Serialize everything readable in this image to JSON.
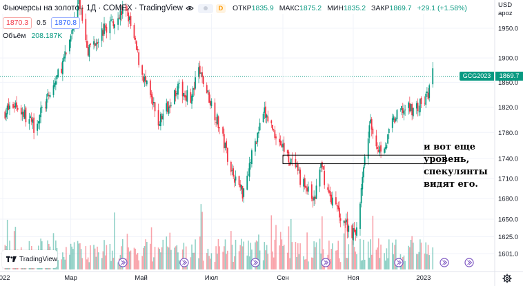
{
  "header": {
    "title": "Фьючерсы на золото · 1Д · COMEX · TradingView",
    "badge_letter": "D",
    "ohlc": [
      {
        "label": "ОТКР",
        "value": "1835.9"
      },
      {
        "label": "МАКС",
        "value": "1875.2"
      },
      {
        "label": "МИН",
        "value": "1835.2"
      },
      {
        "label": "ЗАКР",
        "value": "1869.7"
      }
    ],
    "change": "+29.1 (+1.58%)"
  },
  "quote": {
    "sell": "1870.3",
    "spread": "0.5",
    "buy": "1870.8"
  },
  "volume_legend": {
    "label": "Объём",
    "value": "208.187K"
  },
  "axis_header": {
    "currency": "USD",
    "mode": "apoz"
  },
  "last_price": {
    "symbol": "GCG2023",
    "value": "1869.7"
  },
  "logo": {
    "text": "TradingView"
  },
  "annotation": {
    "text": "и вот еще уровень, спекулянты видят его."
  },
  "colors": {
    "up": "#089981",
    "down": "#f23645",
    "grid": "#f0f3fa",
    "box": "#000000"
  },
  "chart_data": {
    "type": "candlestick",
    "x_range": [
      "2022-01-01",
      "2023-01-31"
    ],
    "x_tick_labels": [
      {
        "date": "2022-01-01",
        "label": "2022"
      },
      {
        "date": "2022-03-01",
        "label": "Мар"
      },
      {
        "date": "2022-05-01",
        "label": "Май"
      },
      {
        "date": "2022-07-01",
        "label": "Июл"
      },
      {
        "date": "2022-09-01",
        "label": "Сен"
      },
      {
        "date": "2022-11-01",
        "label": "Ноя"
      },
      {
        "date": "2023-01-01",
        "label": "2023"
      }
    ],
    "y_scale": "log",
    "y_range": [
      1590,
      2000
    ],
    "y_ticks": [
      "1950.0",
      "1900.0",
      "1860.0",
      "1820.0",
      "1780.0",
      "1740.0",
      "1710.0",
      "1680.0",
      "1650.0",
      "1625.0",
      "1601.0"
    ],
    "price_path": [
      {
        "date": "2022-01-01",
        "price": 1810
      },
      {
        "date": "2022-01-12",
        "price": 1825
      },
      {
        "date": "2022-01-28",
        "price": 1790
      },
      {
        "date": "2022-02-10",
        "price": 1835
      },
      {
        "date": "2022-02-25",
        "price": 1905
      },
      {
        "date": "2022-03-08",
        "price": 2000
      },
      {
        "date": "2022-03-16",
        "price": 1915
      },
      {
        "date": "2022-03-31",
        "price": 1950
      },
      {
        "date": "2022-04-18",
        "price": 1985
      },
      {
        "date": "2022-05-01",
        "price": 1880
      },
      {
        "date": "2022-05-16",
        "price": 1795
      },
      {
        "date": "2022-06-01",
        "price": 1850
      },
      {
        "date": "2022-06-14",
        "price": 1835
      },
      {
        "date": "2022-06-20",
        "price": 1880
      },
      {
        "date": "2022-07-05",
        "price": 1805
      },
      {
        "date": "2022-07-20",
        "price": 1715
      },
      {
        "date": "2022-07-28",
        "price": 1690
      },
      {
        "date": "2022-08-08",
        "price": 1765
      },
      {
        "date": "2022-08-16",
        "price": 1810
      },
      {
        "date": "2022-08-31",
        "price": 1760
      },
      {
        "date": "2022-09-16",
        "price": 1710
      },
      {
        "date": "2022-09-28",
        "price": 1675
      },
      {
        "date": "2022-10-04",
        "price": 1730
      },
      {
        "date": "2022-10-10",
        "price": 1690
      },
      {
        "date": "2022-10-21",
        "price": 1655
      },
      {
        "date": "2022-11-03",
        "price": 1625
      },
      {
        "date": "2022-11-10",
        "price": 1720
      },
      {
        "date": "2022-11-15",
        "price": 1795
      },
      {
        "date": "2022-11-23",
        "price": 1755
      },
      {
        "date": "2022-11-30",
        "price": 1765
      },
      {
        "date": "2022-12-05",
        "price": 1795
      },
      {
        "date": "2022-12-13",
        "price": 1815
      },
      {
        "date": "2022-12-28",
        "price": 1820
      },
      {
        "date": "2023-01-05",
        "price": 1840
      },
      {
        "date": "2023-01-09",
        "price": 1875
      }
    ],
    "level_box": {
      "date_from": "2022-09-01",
      "date_to": "2023-01-20",
      "price_from": 1732,
      "price_to": 1745
    },
    "last_price_line": 1869.7
  }
}
